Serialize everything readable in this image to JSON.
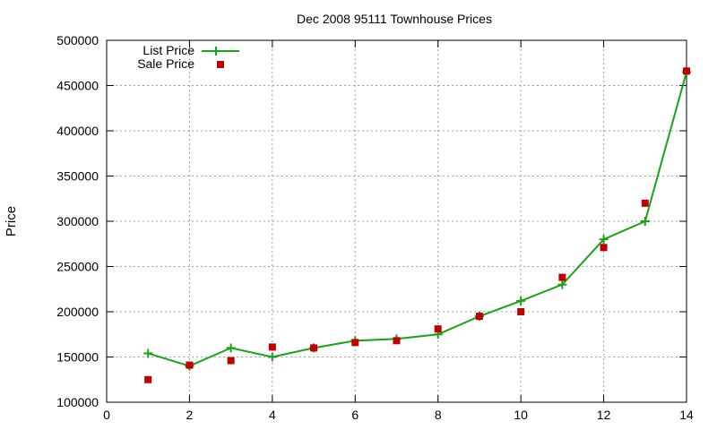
{
  "chart_data": {
    "type": "line",
    "title": "Dec 2008 95111 Townhouse Prices",
    "xlabel": "",
    "ylabel": "Price",
    "xlim": [
      0,
      14
    ],
    "ylim": [
      100000,
      500000
    ],
    "xticks": [
      0,
      2,
      4,
      6,
      8,
      10,
      12,
      14
    ],
    "yticks": [
      100000,
      150000,
      200000,
      250000,
      300000,
      350000,
      400000,
      450000,
      500000
    ],
    "grid": true,
    "legend_position": "top-left",
    "series": [
      {
        "name": "List Price",
        "style": "line-with-plus-markers",
        "color": "#19a319",
        "x": [
          1,
          2,
          3,
          4,
          5,
          6,
          7,
          8,
          9,
          10,
          11,
          12,
          13,
          14
        ],
        "y": [
          154000,
          140000,
          160000,
          150000,
          160000,
          168000,
          170000,
          175000,
          195000,
          212000,
          230000,
          280000,
          300000,
          465000
        ]
      },
      {
        "name": "Sale Price",
        "style": "square-markers",
        "color": "#c00000",
        "x": [
          1,
          2,
          3,
          4,
          5,
          6,
          7,
          8,
          9,
          10,
          11,
          12,
          13,
          14
        ],
        "y": [
          125000,
          141000,
          146000,
          161000,
          160000,
          166000,
          168000,
          181000,
          195000,
          200000,
          238000,
          271000,
          320000,
          466000
        ]
      }
    ]
  }
}
